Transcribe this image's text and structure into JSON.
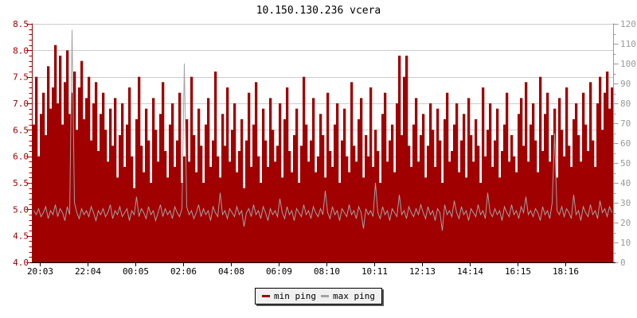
{
  "title": "10.150.130.236 vcera",
  "legend": {
    "items": [
      {
        "label": "min ping",
        "color": "#a00000",
        "icon": "line-swatch-icon"
      },
      {
        "label": "max ping",
        "color": "#a3a3a3",
        "icon": "line-swatch-icon"
      }
    ]
  },
  "chart_data": {
    "type": "area",
    "title": "10.150.130.236 vcera",
    "grid": true,
    "legend_position": "bottom",
    "x_ticks": [
      "20:03",
      "22:04",
      "00:05",
      "02:06",
      "04:08",
      "06:09",
      "08:10",
      "10:11",
      "12:13",
      "14:14",
      "16:15",
      "18:16"
    ],
    "x_axis_color": "#000000",
    "grid_color": "#cccccc",
    "left_axis": {
      "min": 4.0,
      "max": 8.5,
      "tick_step": 0.5,
      "minor_step": 0.1,
      "color": "#a00000",
      "ticks": [
        "4.0",
        "4.5",
        "5.0",
        "5.5",
        "6.0",
        "6.5",
        "7.0",
        "7.5",
        "8.0",
        "8.5"
      ]
    },
    "right_axis": {
      "min": 0,
      "max": 120,
      "tick_step": 10,
      "minor_step": 5,
      "color": "#999999",
      "ticks": [
        "0",
        "10",
        "20",
        "30",
        "40",
        "50",
        "60",
        "70",
        "80",
        "90",
        "100",
        "110",
        "120"
      ]
    },
    "series": [
      {
        "name": "min ping",
        "axis": "left",
        "style": "bars",
        "color": "#a00000",
        "values": [
          6.6,
          7.5,
          6.0,
          6.8,
          7.2,
          6.4,
          7.7,
          6.9,
          7.3,
          8.1,
          7.0,
          7.9,
          6.6,
          7.4,
          8.0,
          6.8,
          7.2,
          7.6,
          6.5,
          7.3,
          7.8,
          6.7,
          7.1,
          7.5,
          6.3,
          7.0,
          7.4,
          6.1,
          6.8,
          7.2,
          6.5,
          5.9,
          6.9,
          6.2,
          7.1,
          5.6,
          6.4,
          7.0,
          5.8,
          6.6,
          7.3,
          6.0,
          5.4,
          6.7,
          7.5,
          6.2,
          5.7,
          6.9,
          6.3,
          5.5,
          7.1,
          6.5,
          5.9,
          6.8,
          7.4,
          6.1,
          5.6,
          6.6,
          7.0,
          5.8,
          6.3,
          7.2,
          5.5,
          6.0,
          6.7,
          5.9,
          7.5,
          6.4,
          5.7,
          6.9,
          6.2,
          5.5,
          6.6,
          7.1,
          5.8,
          6.3,
          7.6,
          6.0,
          5.6,
          6.8,
          6.2,
          7.3,
          5.9,
          6.5,
          7.0,
          5.7,
          6.1,
          6.7,
          5.4,
          6.3,
          7.2,
          5.8,
          6.6,
          7.4,
          6.0,
          5.5,
          6.9,
          6.3,
          5.8,
          7.1,
          6.5,
          5.9,
          6.2,
          7.0,
          5.6,
          6.7,
          7.3,
          6.1,
          5.7,
          6.4,
          6.9,
          5.5,
          6.2,
          7.5,
          6.6,
          5.9,
          6.3,
          7.1,
          5.7,
          6.0,
          6.8,
          6.4,
          5.6,
          7.2,
          6.1,
          5.8,
          6.6,
          7.0,
          5.5,
          6.3,
          6.9,
          6.0,
          5.7,
          7.4,
          6.2,
          5.9,
          6.7,
          7.1,
          5.6,
          6.4,
          6.0,
          7.3,
          5.8,
          6.5,
          6.1,
          5.5,
          6.8,
          7.2,
          5.9,
          6.3,
          6.6,
          5.7,
          7.0,
          7.9,
          6.4,
          7.5,
          7.9,
          6.2,
          5.8,
          6.6,
          7.1,
          5.9,
          6.4,
          6.8,
          5.6,
          6.2,
          7.0,
          6.5,
          5.8,
          6.9,
          6.3,
          5.5,
          6.7,
          7.2,
          5.9,
          6.1,
          6.6,
          7.0,
          5.7,
          6.3,
          6.8,
          5.6,
          7.1,
          6.4,
          5.9,
          6.7,
          6.2,
          5.5,
          7.3,
          6.0,
          6.5,
          7.0,
          5.8,
          6.3,
          6.9,
          5.6,
          6.1,
          6.6,
          7.2,
          5.9,
          6.4,
          6.0,
          5.7,
          6.8,
          7.1,
          6.2,
          7.4,
          5.9,
          6.6,
          7.0,
          6.3,
          5.7,
          7.5,
          6.1,
          6.8,
          7.2,
          5.9,
          6.4,
          6.9,
          5.6,
          7.1,
          6.5,
          6.0,
          7.3,
          6.2,
          5.8,
          6.7,
          7.0,
          6.4,
          5.9,
          7.2,
          6.6,
          6.1,
          7.4,
          6.3,
          5.8,
          7.0,
          7.5,
          6.5,
          7.2,
          7.6,
          6.9,
          7.3
        ]
      },
      {
        "name": "max ping",
        "axis": "right",
        "style": "line",
        "color": "#a3a3a3",
        "values": [
          26,
          24,
          27,
          23,
          25,
          28,
          22,
          26,
          24,
          29,
          23,
          27,
          25,
          21,
          28,
          24,
          117,
          30,
          25,
          22,
          27,
          24,
          26,
          23,
          28,
          25,
          21,
          26,
          24,
          27,
          23,
          25,
          29,
          22,
          26,
          24,
          28,
          23,
          25,
          27,
          21,
          26,
          24,
          33,
          23,
          27,
          25,
          22,
          28,
          24,
          26,
          21,
          25,
          29,
          23,
          27,
          24,
          26,
          22,
          28,
          25,
          23,
          27,
          100,
          28,
          24,
          26,
          22,
          25,
          29,
          23,
          27,
          24,
          26,
          21,
          28,
          25,
          23,
          35,
          24,
          26,
          22,
          27,
          25,
          23,
          28,
          24,
          26,
          18,
          25,
          27,
          23,
          29,
          24,
          26,
          22,
          28,
          25,
          21,
          27,
          24,
          26,
          23,
          32,
          25,
          22,
          28,
          24,
          26,
          21,
          27,
          25,
          23,
          29,
          24,
          26,
          22,
          28,
          25,
          23,
          27,
          24,
          36,
          25,
          22,
          28,
          24,
          26,
          21,
          27,
          25,
          23,
          29,
          24,
          26,
          22,
          28,
          25,
          17,
          27,
          24,
          26,
          23,
          40,
          25,
          22,
          28,
          24,
          26,
          21,
          27,
          25,
          23,
          34,
          24,
          26,
          22,
          28,
          25,
          23,
          27,
          24,
          29,
          25,
          22,
          28,
          24,
          26,
          21,
          27,
          25,
          16,
          29,
          24,
          26,
          23,
          31,
          25,
          22,
          28,
          24,
          26,
          21,
          27,
          25,
          23,
          29,
          24,
          26,
          22,
          35,
          25,
          23,
          27,
          24,
          26,
          21,
          28,
          25,
          23,
          29,
          24,
          26,
          22,
          28,
          25,
          33,
          24,
          26,
          23,
          27,
          25,
          21,
          28,
          24,
          26,
          22,
          30,
          65,
          26,
          24,
          28,
          23,
          27,
          25,
          22,
          34,
          24,
          26,
          21,
          28,
          25,
          23,
          29,
          24,
          26,
          22,
          31,
          25,
          27,
          23,
          28,
          25
        ]
      }
    ]
  }
}
